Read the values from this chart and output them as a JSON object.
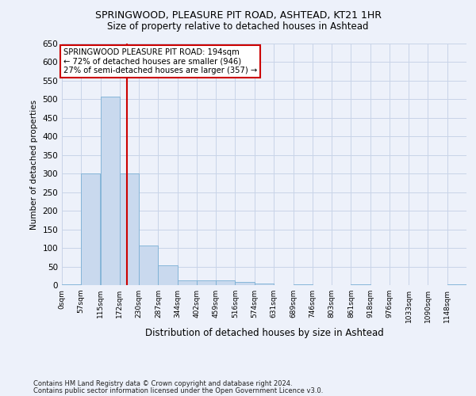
{
  "title1": "SPRINGWOOD, PLEASURE PIT ROAD, ASHTEAD, KT21 1HR",
  "title2": "Size of property relative to detached houses in Ashtead",
  "xlabel": "Distribution of detached houses by size in Ashtead",
  "ylabel": "Number of detached properties",
  "footer1": "Contains HM Land Registry data © Crown copyright and database right 2024.",
  "footer2": "Contains public sector information licensed under the Open Government Licence v3.0.",
  "annotation_line1": "SPRINGWOOD PLEASURE PIT ROAD: 194sqm",
  "annotation_line2": "← 72% of detached houses are smaller (946)",
  "annotation_line3": "27% of semi-detached houses are larger (357) →",
  "bar_color": "#c9d9ee",
  "bar_edge_color": "#7aafd4",
  "line_color": "#cc0000",
  "annotation_box_color": "#ffffff",
  "annotation_box_edge": "#cc0000",
  "grid_color": "#c8d4e8",
  "background_color": "#edf1fa",
  "bins": [
    0,
    57,
    115,
    172,
    230,
    287,
    344,
    402,
    459,
    516,
    574,
    631,
    689,
    746,
    803,
    861,
    918,
    976,
    1033,
    1090,
    1148
  ],
  "bin_labels": [
    "0sqm",
    "57sqm",
    "115sqm",
    "172sqm",
    "230sqm",
    "287sqm",
    "344sqm",
    "402sqm",
    "459sqm",
    "516sqm",
    "574sqm",
    "631sqm",
    "689sqm",
    "746sqm",
    "803sqm",
    "861sqm",
    "918sqm",
    "976sqm",
    "1033sqm",
    "1090sqm",
    "1148sqm"
  ],
  "counts": [
    2,
    300,
    507,
    300,
    107,
    53,
    13,
    13,
    12,
    8,
    5,
    0,
    3,
    0,
    0,
    2,
    0,
    0,
    1,
    0,
    2
  ],
  "property_size": 194,
  "ylim": [
    0,
    650
  ],
  "yticks": [
    0,
    50,
    100,
    150,
    200,
    250,
    300,
    350,
    400,
    450,
    500,
    550,
    600,
    650
  ]
}
